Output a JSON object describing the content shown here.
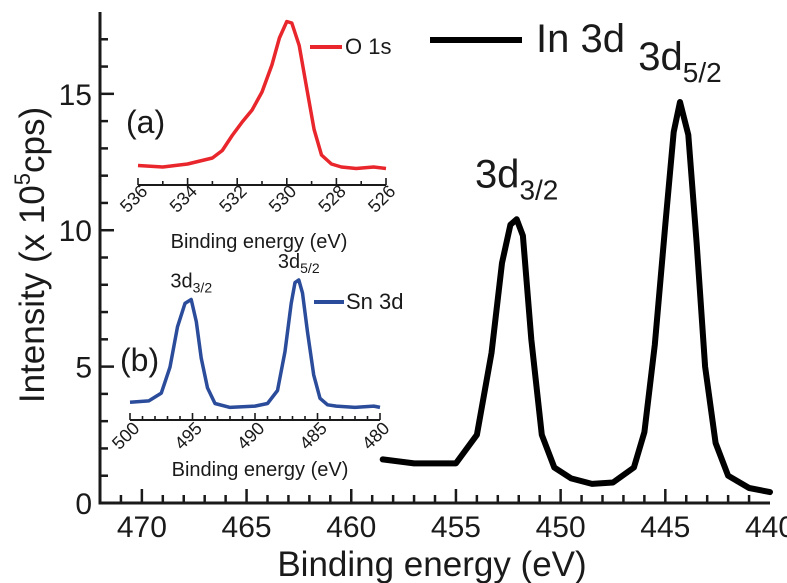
{
  "chart_data": [
    {
      "type": "line",
      "xlabel": "Binding energy (eV)",
      "ylabel": "Intensity (x 10",
      "ylabel_sup": "5",
      "ylabel_end": "cps)",
      "xlim": [
        472,
        440
      ],
      "ylim": [
        0,
        18
      ],
      "xticks": [
        "470",
        "465",
        "460",
        "455",
        "450",
        "445",
        "440"
      ],
      "yticks": [
        "0",
        "5",
        "10",
        "15"
      ],
      "legend_placement": "top-center",
      "series": [
        {
          "name": "In 3d",
          "color": "#000000",
          "x": [
            458.5,
            457,
            455,
            454,
            453.3,
            452.8,
            452.4,
            452.1,
            451.8,
            451.4,
            450.9,
            450.3,
            449.5,
            448.5,
            447.5,
            446.5,
            446.0,
            445.5,
            445.0,
            444.6,
            444.3,
            443.9,
            443.5,
            443.1,
            442.6,
            442,
            441,
            440
          ],
          "y": [
            1.6,
            1.45,
            1.45,
            2.5,
            5.5,
            8.8,
            10.2,
            10.4,
            9.8,
            6.0,
            2.5,
            1.3,
            0.9,
            0.7,
            0.75,
            1.3,
            2.6,
            5.8,
            10.2,
            13.6,
            14.7,
            13.5,
            9.5,
            5.0,
            2.2,
            1.0,
            0.55,
            0.4
          ]
        }
      ],
      "annotations": [
        {
          "base": "3d",
          "sub": "3/2",
          "x": 452.1,
          "y": 10.4
        },
        {
          "base": "3d",
          "sub": "5/2",
          "x": 444.3,
          "y": 14.7
        }
      ]
    },
    {
      "type": "line",
      "panel_label": "(a)",
      "xlabel": "Binding energy (eV)",
      "xlim": [
        536,
        526
      ],
      "xticks": [
        "536",
        "534",
        "532",
        "530",
        "528",
        "526"
      ],
      "legend_placement": "top-right",
      "series": [
        {
          "name": "O 1s",
          "color": "#e8262b",
          "x": [
            536,
            535,
            534,
            533,
            532.6,
            532.2,
            531.8,
            531.4,
            531,
            530.6,
            530.3,
            530.0,
            529.8,
            529.5,
            529.2,
            528.9,
            528.6,
            528.2,
            527.8,
            527.2,
            526.5,
            526
          ],
          "y": [
            0.03,
            0.02,
            0.04,
            0.08,
            0.13,
            0.23,
            0.32,
            0.4,
            0.52,
            0.7,
            0.88,
            0.99,
            0.98,
            0.83,
            0.55,
            0.27,
            0.1,
            0.04,
            0.02,
            0.01,
            0.02,
            0.01
          ]
        }
      ]
    },
    {
      "type": "line",
      "panel_label": "(b)",
      "xlabel": "Binding energy (eV)",
      "xlim": [
        500,
        480
      ],
      "xticks": [
        "500",
        "495",
        "490",
        "485",
        "480"
      ],
      "legend_placement": "top-right",
      "series": [
        {
          "name": "Sn 3d",
          "color": "#2b4c9b",
          "x": [
            500,
            498.5,
            497.5,
            496.8,
            496.2,
            495.6,
            495.1,
            494.7,
            494.3,
            493.8,
            493.2,
            492,
            490,
            489,
            488.2,
            487.6,
            487.1,
            486.8,
            486.5,
            486.2,
            485.8,
            485.3,
            484.8,
            484.2,
            483.5,
            482,
            480.5,
            480
          ],
          "y": [
            0.06,
            0.07,
            0.13,
            0.33,
            0.64,
            0.82,
            0.85,
            0.68,
            0.4,
            0.17,
            0.05,
            0.02,
            0.03,
            0.05,
            0.15,
            0.45,
            0.82,
            0.98,
            1.0,
            0.9,
            0.6,
            0.27,
            0.09,
            0.04,
            0.03,
            0.02,
            0.03,
            0.02
          ]
        }
      ],
      "annotations": [
        {
          "base": "3d",
          "sub": "3/2",
          "x": 495.1,
          "y": 0.85
        },
        {
          "base": "3d",
          "sub": "5/2",
          "x": 486.5,
          "y": 1.0
        }
      ]
    }
  ]
}
